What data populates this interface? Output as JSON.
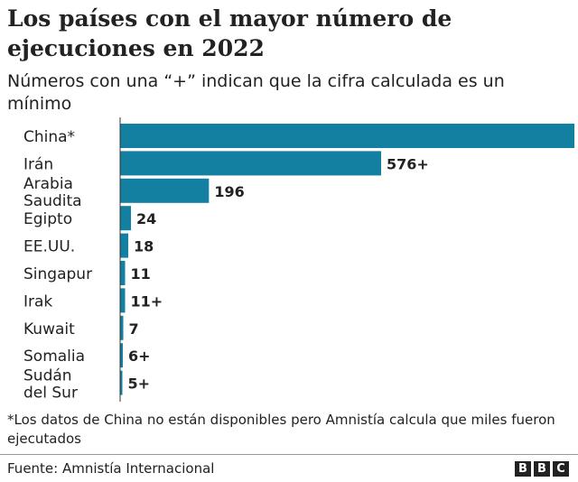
{
  "title": "Los países con el mayor número de ejecuciones en 2022",
  "subtitle": "Números con una “+” indican que la cifra calculada es un mínimo",
  "note": "*Los datos de China no están disponibles pero Amnistía calcula que miles fueron ejecutados",
  "source": "Fuente: Amnistía Internacional",
  "logo": "BBC",
  "chart_data": {
    "type": "bar",
    "orientation": "horizontal",
    "color": "#1380a1",
    "categories": [
      "China*",
      "Irán",
      "Arabia Saudita",
      "Egipto",
      "EE.UU.",
      "Singapur",
      "Irak",
      "Kuwait",
      "Somalia",
      "Sudán del Sur"
    ],
    "values": [
      null,
      576,
      196,
      24,
      18,
      11,
      11,
      7,
      6,
      5
    ],
    "labels": [
      "",
      "576+",
      "196",
      "24",
      "18",
      "11",
      "11+",
      "7",
      "6+",
      "5+"
    ]
  }
}
